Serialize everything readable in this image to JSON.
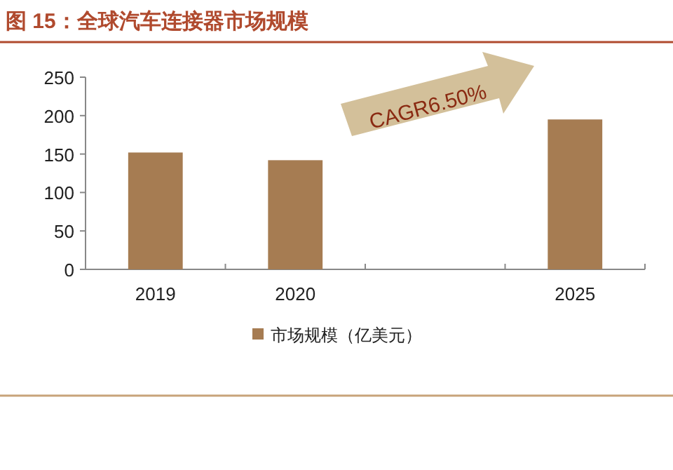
{
  "chart_data": {
    "type": "bar",
    "title": "图 15：全球汽车连接器市场规模",
    "categories": [
      "2019",
      "2020",
      null,
      "2025"
    ],
    "series": [
      {
        "name": "市场规模（亿美元）",
        "color": "#a67c52",
        "values": [
          152,
          142,
          null,
          195
        ]
      }
    ],
    "ylim": [
      0,
      250
    ],
    "yticks": [
      0,
      50,
      100,
      150,
      200,
      250
    ],
    "grid": false,
    "legend": "bottom",
    "annotations": [
      "CAGR6.50%"
    ]
  }
}
